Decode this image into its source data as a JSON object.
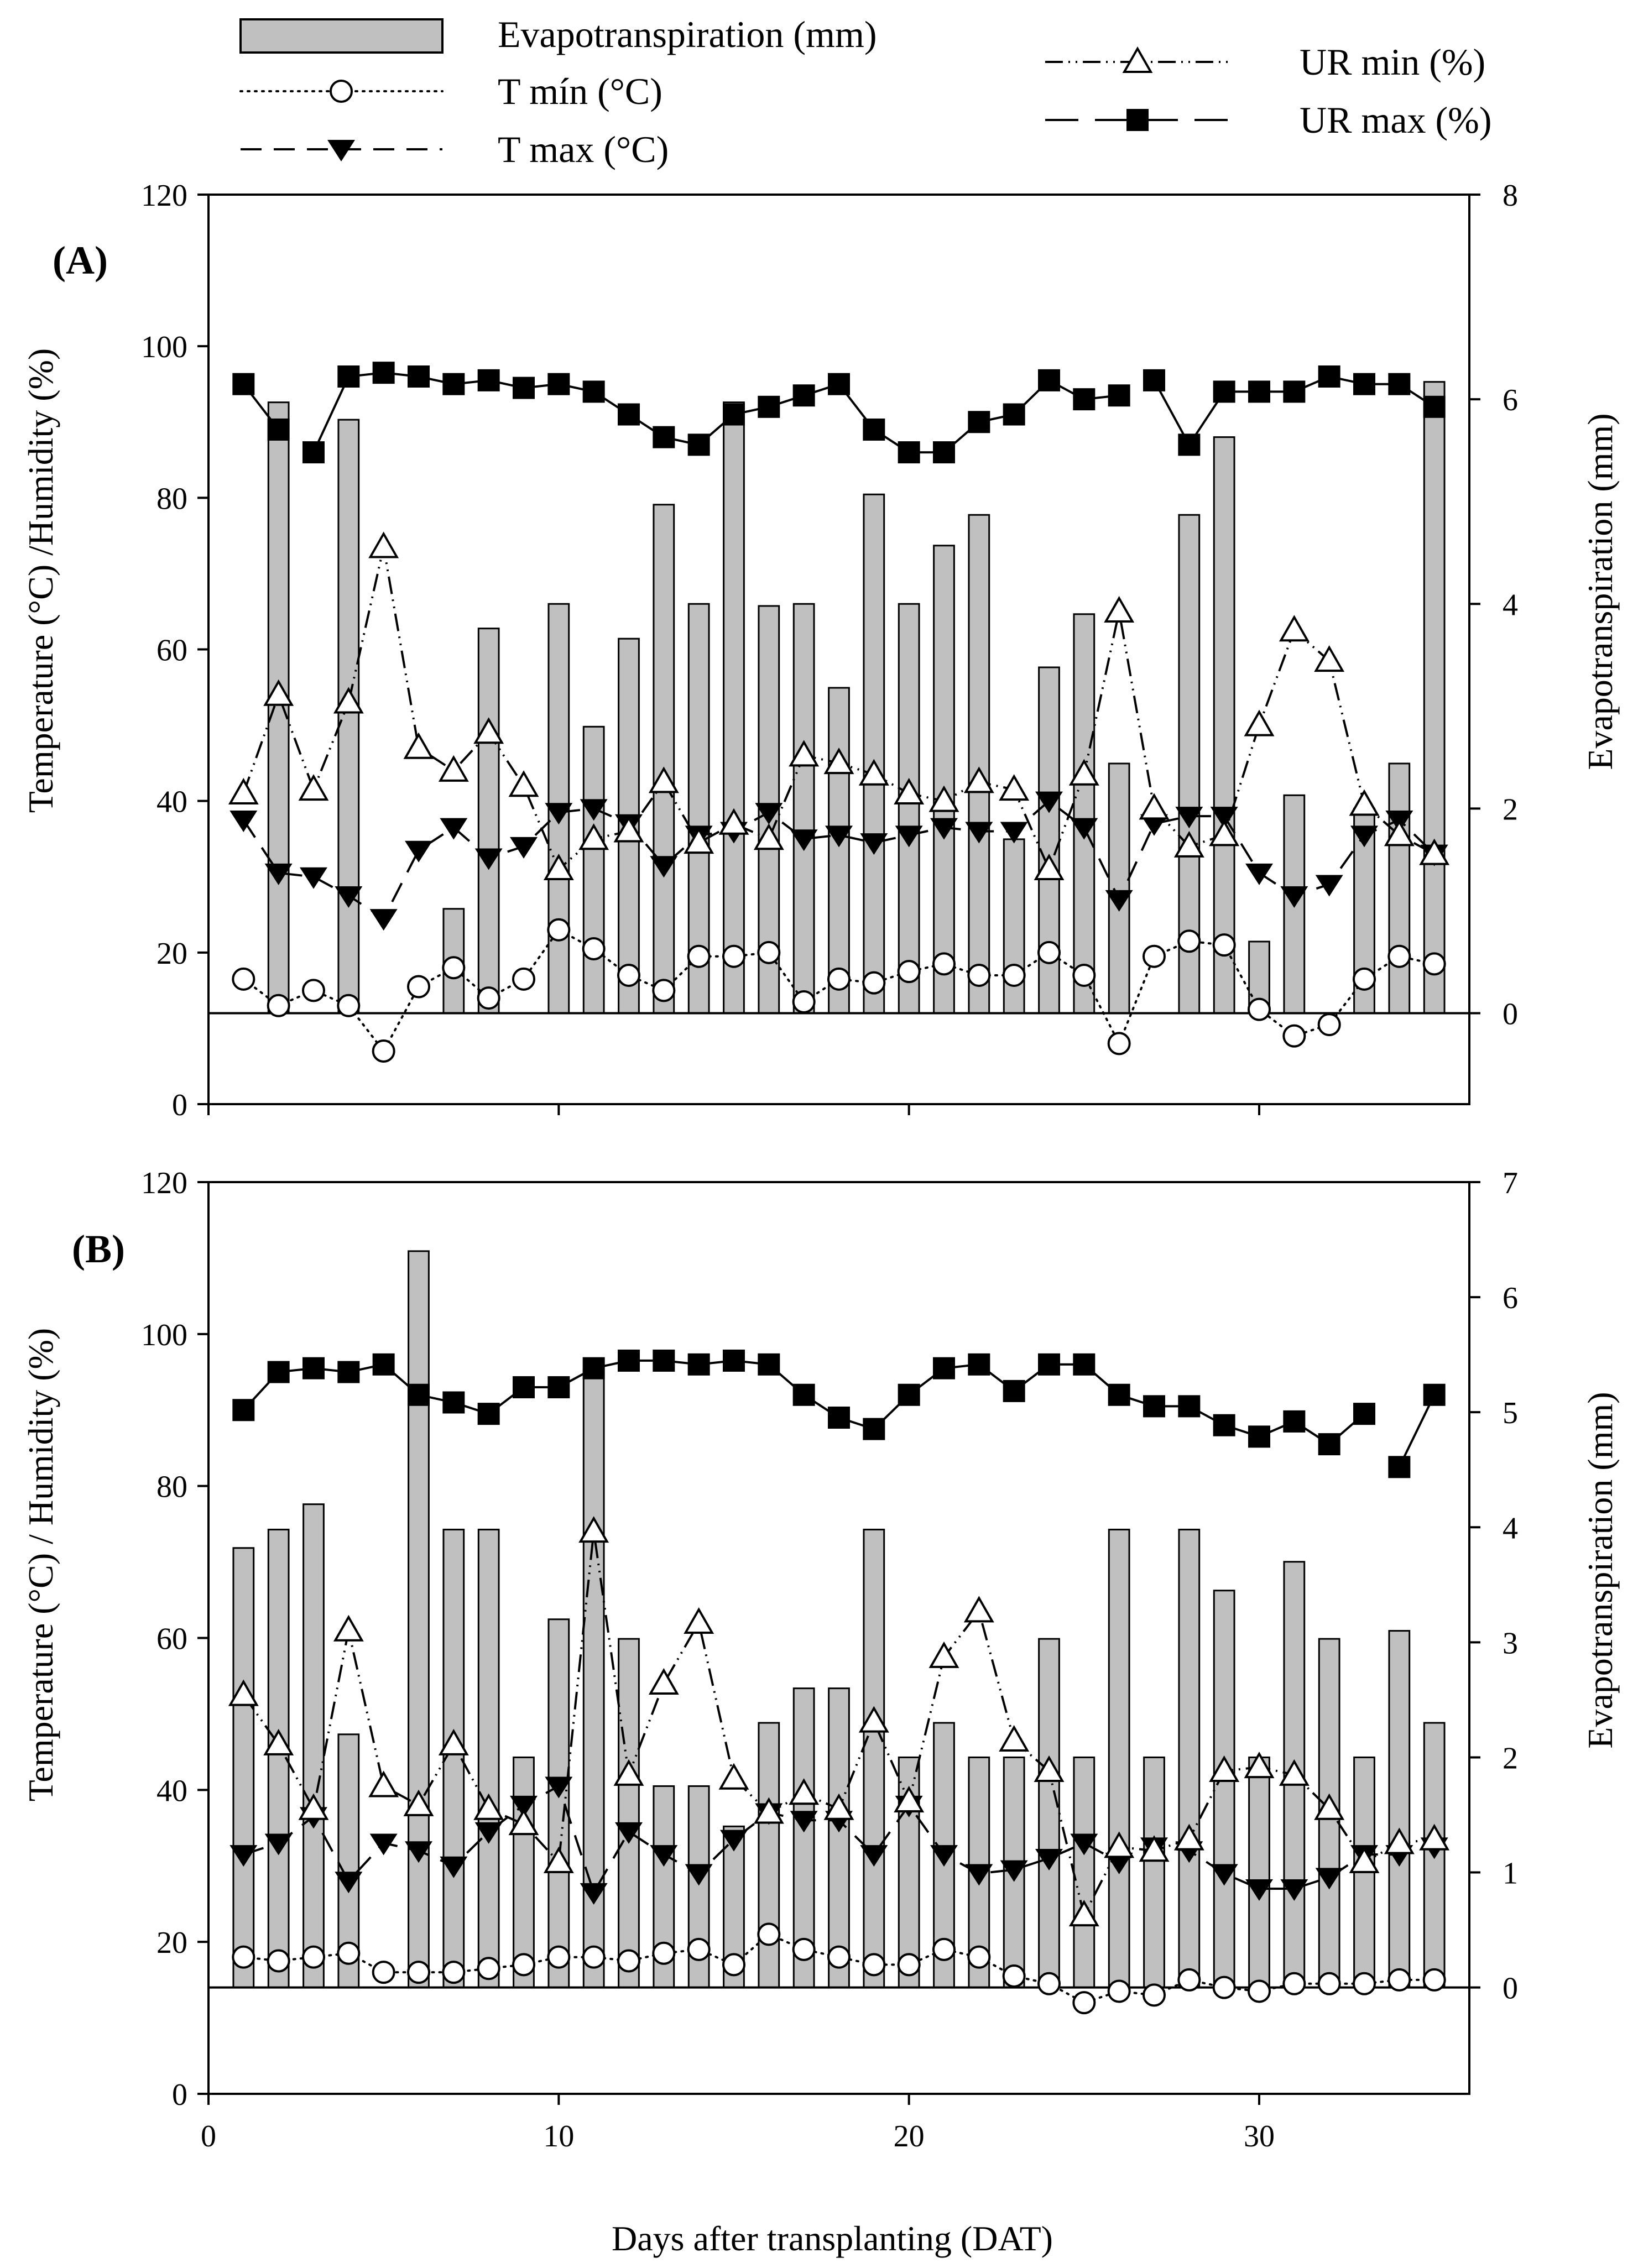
{
  "legend": {
    "evapotranspiration": "Evapotranspiration (mm)",
    "t_min": "T mín (°C)",
    "t_max": "T max (°C)",
    "ur_min": "UR min (%)",
    "ur_max": "UR max (%)"
  },
  "x_axis": {
    "label": "Days after transplanting (DAT)",
    "ticks": [
      0,
      10,
      20,
      30
    ],
    "range": [
      0,
      36
    ]
  },
  "chart_data": [
    {
      "type": "bar+line",
      "panel": "(A)",
      "ylabel_left": "Temperature (°C) /Humidity (%)",
      "ylabel_right": "Evapotranspiration  (mm)",
      "ylim_left": [
        0,
        120
      ],
      "ylim_right": [
        0,
        8
      ],
      "left_ticks": [
        0,
        20,
        40,
        60,
        80,
        100,
        120
      ],
      "right_ticks": [
        0,
        2,
        4,
        6,
        8
      ],
      "right_zero_at_left": 12,
      "days": [
        1,
        2,
        3,
        4,
        5,
        6,
        7,
        8,
        9,
        10,
        11,
        12,
        13,
        14,
        15,
        16,
        17,
        18,
        19,
        20,
        21,
        22,
        23,
        24,
        25,
        26,
        27,
        28,
        29,
        30,
        31,
        32,
        33,
        34,
        35
      ],
      "series": [
        {
          "name": "Evapotranspiration (mm)",
          "axis": "right",
          "type": "bar",
          "values": [
            null,
            5.97,
            null,
            5.8,
            null,
            null,
            1.02,
            3.76,
            null,
            4.0,
            2.8,
            3.66,
            4.97,
            4.0,
            5.97,
            3.98,
            4.0,
            3.18,
            5.07,
            4.0,
            4.57,
            4.87,
            1.7,
            3.38,
            3.9,
            2.44,
            null,
            4.87,
            5.63,
            0.7,
            2.13,
            null,
            2.0,
            2.44,
            6.17
          ]
        },
        {
          "name": "T mín (°C)",
          "axis": "left",
          "type": "line",
          "marker": "circle-open",
          "values": [
            16.5,
            13,
            15,
            13,
            7,
            15.5,
            18,
            14,
            16.5,
            23,
            20.5,
            17,
            15,
            19.5,
            19.5,
            20,
            13.5,
            16.5,
            16,
            17.5,
            18.5,
            17,
            17,
            20,
            17,
            8,
            19.5,
            21.5,
            21,
            12.5,
            9,
            10.5,
            16.5,
            19.5,
            18.5
          ]
        },
        {
          "name": "T max (°C)",
          "axis": "left",
          "type": "line",
          "marker": "triangle-down-filled",
          "values": [
            37.5,
            30.5,
            30,
            27.5,
            24.5,
            33.5,
            36.5,
            32.5,
            34,
            38.5,
            39,
            37,
            31.5,
            35.5,
            36,
            38.5,
            35,
            35.5,
            34.5,
            35.5,
            36.5,
            36,
            36,
            40,
            36.5,
            27,
            37,
            38,
            38,
            30.5,
            27.5,
            29,
            35.5,
            37.5,
            33
          ]
        },
        {
          "name": "UR min (%)",
          "axis": "left",
          "type": "line",
          "marker": "triangle-up-open",
          "values": [
            41,
            54,
            41.5,
            53,
            73.5,
            47,
            44,
            49,
            42,
            31,
            35,
            36,
            42.5,
            34.5,
            37,
            35,
            46,
            45,
            43.5,
            41,
            40,
            42.5,
            41.5,
            31,
            43.5,
            65,
            39,
            34,
            35.5,
            50,
            62.5,
            58.5,
            39.5,
            35.5,
            33
          ]
        },
        {
          "name": "UR max (%)",
          "axis": "left",
          "type": "line",
          "marker": "square-filled",
          "values": [
            95,
            89,
            86,
            96,
            96.5,
            96,
            95,
            95.5,
            94.5,
            95,
            94,
            91,
            88,
            87,
            91,
            92,
            93.5,
            95,
            89,
            86,
            86,
            90,
            91,
            95.5,
            93,
            93.5,
            95.5,
            87,
            94,
            94,
            94,
            96,
            95,
            95,
            92
          ],
          "breaks_after_day": [
            2,
            26
          ]
        }
      ]
    },
    {
      "type": "bar+line",
      "panel": "(B)",
      "ylabel_left": "Temperature (°C) / Humidity (%)",
      "ylabel_right": "Evapotranspiration  (mm)",
      "ylim_left": [
        0,
        120
      ],
      "ylim_right": [
        0,
        7
      ],
      "left_ticks": [
        0,
        20,
        40,
        60,
        80,
        100,
        120
      ],
      "right_ticks": [
        0,
        1,
        2,
        3,
        4,
        5,
        6,
        7
      ],
      "right_zero_at_left": 14,
      "days": [
        1,
        2,
        3,
        4,
        5,
        6,
        7,
        8,
        9,
        10,
        11,
        12,
        13,
        14,
        15,
        16,
        17,
        18,
        19,
        20,
        21,
        22,
        23,
        24,
        25,
        26,
        27,
        28,
        29,
        30,
        31,
        32,
        33,
        34,
        35
      ],
      "series": [
        {
          "name": "Evapotranspiration (mm)",
          "axis": "right",
          "type": "bar",
          "values": [
            3.82,
            3.98,
            4.2,
            2.2,
            null,
            6.4,
            3.98,
            3.98,
            2.0,
            3.2,
            5.37,
            3.03,
            1.75,
            1.75,
            1.4,
            2.3,
            2.6,
            2.6,
            3.98,
            2.0,
            2.3,
            2.0,
            2.0,
            3.03,
            2.0,
            3.98,
            2.0,
            3.98,
            3.45,
            2.0,
            3.7,
            3.03,
            2.0,
            3.1,
            2.3
          ]
        },
        {
          "name": "T mín (°C)",
          "axis": "left",
          "type": "line",
          "marker": "circle-open",
          "values": [
            18,
            17.5,
            18,
            18.5,
            16,
            16,
            16,
            16.5,
            17,
            18,
            18,
            17.5,
            18.5,
            19,
            17,
            21,
            19,
            18,
            17,
            17,
            19,
            18,
            15.5,
            14.5,
            12,
            13.5,
            13,
            15,
            14,
            13.5,
            14.5,
            14.5,
            14.5,
            15,
            15
          ]
        },
        {
          "name": "T max (°C)",
          "axis": "left",
          "type": "line",
          "marker": "triangle-down-filled",
          "values": [
            31.5,
            33,
            36.5,
            28,
            33,
            32,
            30,
            34.5,
            38,
            40.5,
            26.5,
            34.5,
            31.5,
            29,
            33.5,
            37,
            36,
            36,
            31.5,
            38,
            31.5,
            29,
            29.5,
            31,
            33,
            30.5,
            32.5,
            32,
            29,
            27,
            27,
            28.5,
            31.5,
            31.5,
            32.5
          ]
        },
        {
          "name": "UR min (%)",
          "axis": "left",
          "type": "line",
          "marker": "triangle-up-open",
          "values": [
            52.5,
            46,
            37.5,
            61,
            40.5,
            38,
            46,
            37.5,
            35.5,
            30.5,
            74,
            42,
            54,
            62,
            41.5,
            37,
            39.5,
            37.5,
            49,
            38.5,
            57.5,
            63.5,
            46.5,
            42.5,
            23.5,
            32.5,
            32,
            33.5,
            42.5,
            43,
            42,
            37.5,
            30.5,
            33,
            33.5
          ]
        },
        {
          "name": "UR max (%)",
          "axis": "left",
          "type": "line",
          "marker": "square-filled",
          "values": [
            90,
            95,
            95.5,
            95,
            96,
            92,
            91,
            89.5,
            93,
            93,
            95.5,
            96.5,
            96.5,
            96,
            96.5,
            96,
            92,
            89,
            87.5,
            92,
            95.5,
            96,
            92.5,
            96,
            96,
            92,
            90.5,
            90.5,
            88,
            86.5,
            88.5,
            85.5,
            89.5,
            82.5,
            92
          ],
          "breaks_after_day": [
            33
          ]
        }
      ]
    }
  ]
}
